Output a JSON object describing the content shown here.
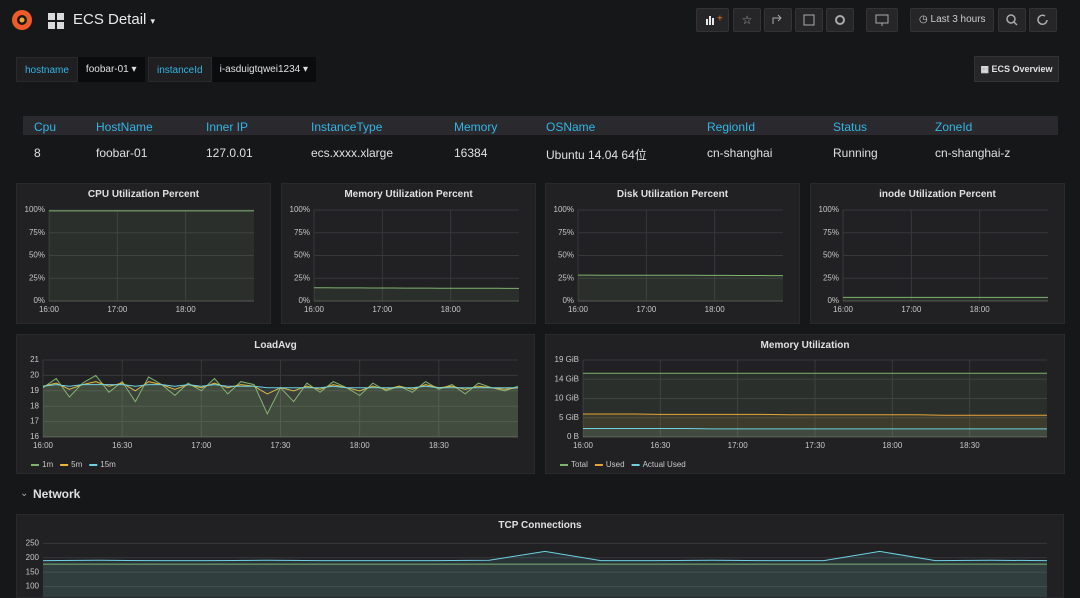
{
  "header": {
    "title": "ECS Detail",
    "time_range": "Last 3 hours"
  },
  "variables": [
    {
      "label": "hostname",
      "value": "foobar-01"
    },
    {
      "label": "instanceId",
      "value": "i-asduigtqwei1234"
    }
  ],
  "link": "ECS Overview",
  "table": {
    "columns": [
      "Cpu",
      "HostName",
      "Inner IP",
      "InstanceType",
      "Memory",
      "OSName",
      "RegionId",
      "Status",
      "ZoneId"
    ],
    "rows": [
      [
        8,
        "foobar-01",
        "127.0.01",
        "ecs.xxxx.xlarge",
        16384,
        "Ubuntu 14.04 64位",
        "cn-shanghai",
        "Running",
        "cn-shanghai-z"
      ]
    ]
  },
  "row_title": "Network",
  "chart_data": [
    {
      "type": "line",
      "title": "CPU Utilization Percent",
      "fill": true,
      "grid": true,
      "x": [
        "16:00",
        "16:10",
        "16:20",
        "16:30",
        "16:40",
        "16:50",
        "17:00",
        "17:10",
        "17:20",
        "17:30",
        "17:40",
        "17:50",
        "18:00",
        "18:10",
        "18:20",
        "18:30",
        "18:40",
        "18:50",
        "19:00"
      ],
      "xlim": [
        "16:00",
        "19:00"
      ],
      "xticks": [
        "16:00",
        "17:00",
        "18:00"
      ],
      "ylim": [
        0,
        100
      ],
      "yticks": [
        {
          "value": 0,
          "label": "0%"
        },
        {
          "value": 25,
          "label": "25%"
        },
        {
          "value": 50,
          "label": "50%"
        },
        {
          "value": 75,
          "label": "75%"
        },
        {
          "value": 100,
          "label": "100%"
        }
      ],
      "series": [
        {
          "color": "#7eb26d",
          "values": [
            99,
            99,
            99,
            99,
            99,
            99,
            99,
            99,
            99,
            99,
            99,
            99,
            99,
            99,
            99,
            99,
            99,
            99,
            99
          ]
        }
      ]
    },
    {
      "type": "line",
      "title": "Memory Utilization Percent",
      "fill": true,
      "grid": true,
      "x": [
        "16:00",
        "16:10",
        "16:20",
        "16:30",
        "16:40",
        "16:50",
        "17:00",
        "17:10",
        "17:20",
        "17:30",
        "17:40",
        "17:50",
        "18:00",
        "18:10",
        "18:20",
        "18:30",
        "18:40",
        "18:50",
        "19:00"
      ],
      "xlim": [
        "16:00",
        "19:00"
      ],
      "xticks": [
        "16:00",
        "17:00",
        "18:00"
      ],
      "ylim": [
        0,
        100
      ],
      "yticks": [
        {
          "value": 0,
          "label": "0%"
        },
        {
          "value": 25,
          "label": "25%"
        },
        {
          "value": 50,
          "label": "50%"
        },
        {
          "value": 75,
          "label": "75%"
        },
        {
          "value": 100,
          "label": "100%"
        }
      ],
      "series": [
        {
          "color": "#7eb26d",
          "values": [
            14.5,
            14.5,
            14.4,
            14.4,
            14.4,
            14.3,
            14.3,
            14.3,
            14.2,
            14.2,
            14.2,
            14.1,
            14.1,
            14.1,
            14,
            14,
            14,
            13.9,
            13.9
          ]
        }
      ]
    },
    {
      "type": "line",
      "title": "Disk Utilization Percent",
      "fill": true,
      "grid": true,
      "x": [
        "16:00",
        "16:10",
        "16:20",
        "16:30",
        "16:40",
        "16:50",
        "17:00",
        "17:10",
        "17:20",
        "17:30",
        "17:40",
        "17:50",
        "18:00",
        "18:10",
        "18:20",
        "18:30",
        "18:40",
        "18:50",
        "19:00"
      ],
      "xlim": [
        "16:00",
        "19:00"
      ],
      "xticks": [
        "16:00",
        "17:00",
        "18:00"
      ],
      "ylim": [
        0,
        100
      ],
      "yticks": [
        {
          "value": 0,
          "label": "0%"
        },
        {
          "value": 25,
          "label": "25%"
        },
        {
          "value": 50,
          "label": "50%"
        },
        {
          "value": 75,
          "label": "75%"
        },
        {
          "value": 100,
          "label": "100%"
        }
      ],
      "series": [
        {
          "color": "#7eb26d",
          "values": [
            28.5,
            28.5,
            28.4,
            28.4,
            28.4,
            28.3,
            28.3,
            28.3,
            28.2,
            28.2,
            28.2,
            28.1,
            28.1,
            28.1,
            28,
            28,
            28,
            27.9,
            27.9
          ]
        }
      ]
    },
    {
      "type": "line",
      "title": "inode Utilization Percent",
      "fill": true,
      "grid": true,
      "x": [
        "16:00",
        "16:10",
        "16:20",
        "16:30",
        "16:40",
        "16:50",
        "17:00",
        "17:10",
        "17:20",
        "17:30",
        "17:40",
        "17:50",
        "18:00",
        "18:10",
        "18:20",
        "18:30",
        "18:40",
        "18:50",
        "19:00"
      ],
      "xlim": [
        "16:00",
        "19:00"
      ],
      "xticks": [
        "16:00",
        "17:00",
        "18:00"
      ],
      "ylim": [
        0,
        100
      ],
      "yticks": [
        {
          "value": 0,
          "label": "0%"
        },
        {
          "value": 25,
          "label": "25%"
        },
        {
          "value": 50,
          "label": "50%"
        },
        {
          "value": 75,
          "label": "75%"
        },
        {
          "value": 100,
          "label": "100%"
        }
      ],
      "series": [
        {
          "color": "#7eb26d",
          "values": [
            4,
            4,
            4,
            4,
            4,
            4,
            4,
            4,
            4,
            4,
            4,
            4,
            4,
            4,
            4,
            4,
            4,
            4,
            4
          ]
        }
      ]
    },
    {
      "type": "line",
      "title": "LoadAvg",
      "fill": true,
      "grid": true,
      "legend": "bottom-left",
      "x": [
        "16:00",
        "16:05",
        "16:10",
        "16:15",
        "16:20",
        "16:25",
        "16:30",
        "16:35",
        "16:40",
        "16:45",
        "16:50",
        "16:55",
        "17:00",
        "17:05",
        "17:10",
        "17:15",
        "17:20",
        "17:25",
        "17:30",
        "17:35",
        "17:40",
        "17:45",
        "17:50",
        "17:55",
        "18:00",
        "18:05",
        "18:10",
        "18:15",
        "18:20",
        "18:25",
        "18:30",
        "18:35",
        "18:40",
        "18:45",
        "18:50",
        "18:55",
        "19:00"
      ],
      "xlim": [
        "16:00",
        "19:00"
      ],
      "xticks": [
        "16:00",
        "16:30",
        "17:00",
        "17:30",
        "18:00",
        "18:30"
      ],
      "ylim": [
        16,
        21
      ],
      "yticks": [
        16,
        17,
        18,
        19,
        20,
        21
      ],
      "series": [
        {
          "name": "1m",
          "color": "#7eb26d",
          "values": [
            19.2,
            19.8,
            18.6,
            19.5,
            20.0,
            18.9,
            19.6,
            18.3,
            19.9,
            19.4,
            18.7,
            19.5,
            19.0,
            19.8,
            18.8,
            19.6,
            19.4,
            17.5,
            19.2,
            18.3,
            19.5,
            18.9,
            19.6,
            19.2,
            18.7,
            19.5,
            19.0,
            19.3,
            18.9,
            19.6,
            19.1,
            19.4,
            18.8,
            19.5,
            19.2,
            19.0,
            19.3
          ]
        },
        {
          "name": "5m",
          "color": "#eab839",
          "values": [
            19.3,
            19.5,
            19.1,
            19.4,
            19.6,
            19.3,
            19.5,
            19.0,
            19.6,
            19.4,
            19.1,
            19.4,
            19.2,
            19.5,
            19.2,
            19.4,
            19.3,
            18.8,
            19.2,
            19.0,
            19.3,
            19.1,
            19.4,
            19.2,
            19.0,
            19.3,
            19.1,
            19.3,
            19.1,
            19.4,
            19.2,
            19.3,
            19.1,
            19.3,
            19.2,
            19.1,
            19.2
          ]
        },
        {
          "name": "15m",
          "color": "#6ed0e0",
          "values": [
            19.3,
            19.4,
            19.3,
            19.4,
            19.4,
            19.4,
            19.4,
            19.3,
            19.4,
            19.4,
            19.3,
            19.4,
            19.3,
            19.4,
            19.3,
            19.3,
            19.3,
            19.2,
            19.2,
            19.2,
            19.2,
            19.2,
            19.3,
            19.2,
            19.2,
            19.2,
            19.2,
            19.2,
            19.2,
            19.3,
            19.2,
            19.2,
            19.2,
            19.2,
            19.2,
            19.2,
            19.2
          ]
        }
      ]
    },
    {
      "type": "line",
      "title": "Memory Utilization",
      "fill": true,
      "grid": true,
      "legend": "bottom-left",
      "x": [
        "16:00",
        "16:10",
        "16:20",
        "16:30",
        "16:40",
        "16:50",
        "17:00",
        "17:10",
        "17:20",
        "17:30",
        "17:40",
        "17:50",
        "18:00",
        "18:10",
        "18:20",
        "18:30",
        "18:40",
        "18:50",
        "19:00"
      ],
      "xlim": [
        "16:00",
        "19:00"
      ],
      "xticks": [
        "16:00",
        "16:30",
        "17:00",
        "17:30",
        "18:00",
        "18:30"
      ],
      "ylim": [
        0,
        19.07
      ],
      "yticks": [
        {
          "value": 0,
          "label": "0 B"
        },
        {
          "value": 4.77,
          "label": "5 GiB"
        },
        {
          "value": 9.54,
          "label": "10 GiB"
        },
        {
          "value": 14.31,
          "label": "14 GiB"
        },
        {
          "value": 19.07,
          "label": "19 GiB"
        }
      ],
      "series": [
        {
          "name": "Total",
          "color": "#7eb26d",
          "values": [
            15.8,
            15.8,
            15.8,
            15.8,
            15.8,
            15.8,
            15.8,
            15.8,
            15.8,
            15.8,
            15.8,
            15.8,
            15.8,
            15.8,
            15.8,
            15.8,
            15.8,
            15.8,
            15.8
          ]
        },
        {
          "name": "Used",
          "color": "#e5a33a",
          "values": [
            5.7,
            5.7,
            5.7,
            5.6,
            5.6,
            5.6,
            5.6,
            5.6,
            5.5,
            5.5,
            5.5,
            5.5,
            5.5,
            5.5,
            5.4,
            5.4,
            5.4,
            5.4,
            5.4
          ]
        },
        {
          "name": "Actual Used",
          "color": "#6ed0e0",
          "values": [
            2.1,
            2.1,
            2.1,
            2.1,
            2.1,
            2.0,
            2.0,
            2.0,
            2.0,
            2.0,
            2.0,
            2.0,
            2.0,
            2.0,
            2.0,
            2.0,
            2.0,
            2.0,
            2.0
          ]
        }
      ]
    },
    {
      "type": "line",
      "title": "TCP Connections",
      "fill": true,
      "grid": true,
      "x": [
        "16:00",
        "16:10",
        "16:20",
        "16:30",
        "16:40",
        "16:50",
        "17:00",
        "17:10",
        "17:20",
        "17:30",
        "17:40",
        "17:50",
        "18:00",
        "18:10",
        "18:20",
        "18:30",
        "18:40",
        "18:50",
        "19:00"
      ],
      "xlim": [
        "16:00",
        "19:00"
      ],
      "ylim": [
        50,
        265
      ],
      "yticks": [
        100,
        150,
        200,
        250
      ],
      "series": [
        {
          "color": "#7eb26d",
          "values": [
            178,
            178,
            178,
            178,
            178,
            178,
            178,
            178,
            178,
            178,
            178,
            178,
            178,
            178,
            178,
            178,
            178,
            178,
            178
          ]
        },
        {
          "color": "#6ed0e0",
          "values": [
            190,
            191,
            190,
            190,
            191,
            190,
            190,
            190,
            191,
            222,
            190,
            190,
            191,
            190,
            190,
            222,
            190,
            191,
            190
          ]
        }
      ]
    }
  ]
}
